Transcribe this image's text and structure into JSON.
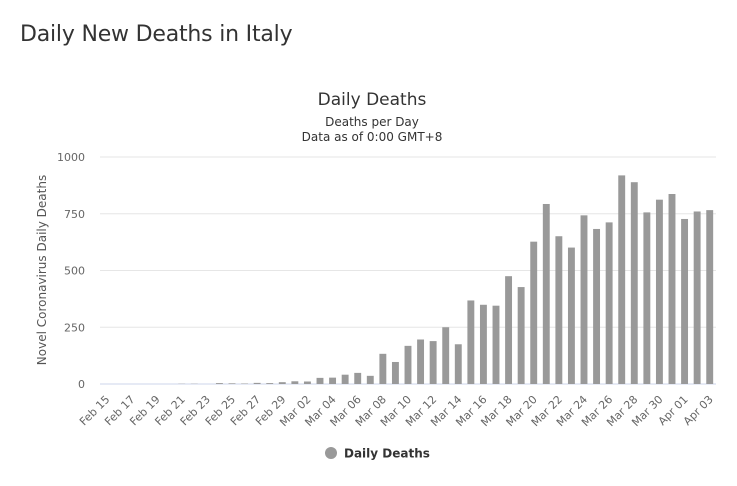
{
  "page": {
    "title": "Daily New Deaths in Italy"
  },
  "chart_data": {
    "type": "bar",
    "title": "Daily Deaths",
    "subtitle": [
      "Deaths per Day",
      "Data as of 0:00 GMT+8"
    ],
    "ylabel": "Novel Coronavirus Daily Deaths",
    "xlabel": "",
    "ylim": [
      0,
      1000
    ],
    "yticks": [
      0,
      250,
      500,
      750,
      1000
    ],
    "grid": true,
    "legend_position": "bottom-center",
    "bar_color": "#999999",
    "categories": [
      "Feb 15",
      "Feb 16",
      "Feb 17",
      "Feb 18",
      "Feb 19",
      "Feb 20",
      "Feb 21",
      "Feb 22",
      "Feb 23",
      "Feb 24",
      "Feb 25",
      "Feb 26",
      "Feb 27",
      "Feb 28",
      "Feb 29",
      "Mar 01",
      "Mar 02",
      "Mar 03",
      "Mar 04",
      "Mar 05",
      "Mar 06",
      "Mar 07",
      "Mar 08",
      "Mar 09",
      "Mar 10",
      "Mar 11",
      "Mar 12",
      "Mar 13",
      "Mar 14",
      "Mar 15",
      "Mar 16",
      "Mar 17",
      "Mar 18",
      "Mar 19",
      "Mar 20",
      "Mar 21",
      "Mar 22",
      "Mar 23",
      "Mar 24",
      "Mar 25",
      "Mar 26",
      "Mar 27",
      "Mar 28",
      "Mar 29",
      "Mar 30",
      "Mar 31",
      "Apr 01",
      "Apr 02",
      "Apr 03"
    ],
    "tick_labels": [
      "Feb 15",
      "Feb 17",
      "Feb 19",
      "Feb 21",
      "Feb 23",
      "Feb 25",
      "Feb 27",
      "Feb 29",
      "Mar 02",
      "Mar 04",
      "Mar 06",
      "Mar 08",
      "Mar 10",
      "Mar 12",
      "Mar 14",
      "Mar 16",
      "Mar 18",
      "Mar 20",
      "Mar 22",
      "Mar 24",
      "Mar 26",
      "Mar 28",
      "Mar 30",
      "Apr 01",
      "Apr 03"
    ],
    "series": [
      {
        "name": "Daily Deaths",
        "values": [
          0,
          0,
          0,
          0,
          0,
          0,
          1,
          1,
          0,
          4,
          3,
          2,
          5,
          4,
          8,
          12,
          11,
          27,
          28,
          41,
          49,
          36,
          133,
          97,
          168,
          196,
          189,
          250,
          175,
          368,
          349,
          345,
          475,
          427,
          627,
          793,
          651,
          601,
          743,
          683,
          712,
          919,
          889,
          756,
          812,
          837,
          727,
          760,
          766
        ]
      }
    ]
  }
}
